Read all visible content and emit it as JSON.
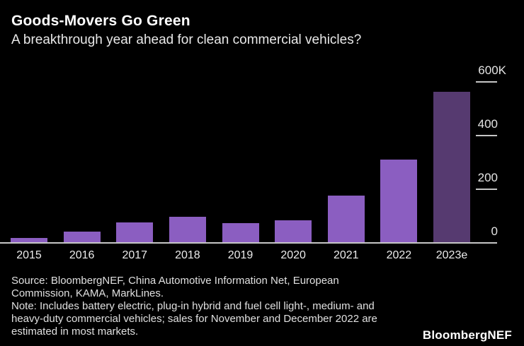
{
  "chart_data": {
    "type": "bar",
    "title": "Goods-Movers Go Green",
    "subtitle": "A breakthrough year ahead for clean commercial vehicles?",
    "categories": [
      "2015",
      "2016",
      "2017",
      "2018",
      "2019",
      "2020",
      "2021",
      "2022",
      "2023e"
    ],
    "values": [
      15,
      40,
      74,
      96,
      70,
      82,
      175,
      308,
      560
    ],
    "units": "K (thousands of vehicles)",
    "ylim": [
      0,
      600
    ],
    "yticks": [
      {
        "value": 0,
        "label": "0"
      },
      {
        "value": 200,
        "label": "200"
      },
      {
        "value": 400,
        "label": "400"
      },
      {
        "value": 600,
        "label": "600K"
      }
    ],
    "axis_side": "right",
    "grid": false,
    "legend": false,
    "highlight_index": 8,
    "colors": {
      "bar": "#8b5ec1",
      "bar_highlight": "#563a70",
      "axis_line": "#c6c6c6",
      "tick_line": "#c6c6c6",
      "background": "#000000"
    }
  },
  "footer": {
    "source_lines": [
      "Source: BloombergNEF, China Automotive Information Net, European",
      "Commission, KAMA, MarkLines.",
      "Note: Includes battery electric, plug-in hybrid and fuel cell light-, medium- and",
      "heavy-duty commercial vehicles; sales for November and December 2022 are",
      "estimated in most markets."
    ],
    "logo": "BloombergNEF"
  }
}
